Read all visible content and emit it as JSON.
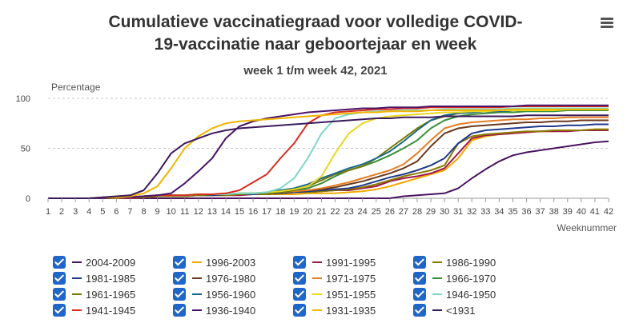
{
  "title": "Cumulatieve vaccinatiegraad voor volledige COVID-19-vaccinatie naar geboortejaar en week",
  "title_lines": [
    "Cumulatieve vaccinatiegraad voor volledige COVID-",
    "19-vaccinatie naar geboortejaar en week"
  ],
  "subtitle": "week 1 t/m week 42, 2021",
  "menu_icon": "hamburger-menu-icon",
  "chart_data": {
    "type": "line",
    "ylabel": "Percentage",
    "xlabel": "Weeknummer",
    "ylim": [
      0,
      100
    ],
    "yticks": [
      0,
      50,
      100
    ],
    "x": [
      1,
      2,
      3,
      4,
      5,
      6,
      7,
      8,
      9,
      10,
      11,
      12,
      13,
      14,
      15,
      16,
      17,
      18,
      19,
      20,
      21,
      22,
      23,
      24,
      25,
      26,
      27,
      28,
      29,
      30,
      31,
      32,
      33,
      34,
      35,
      36,
      37,
      38,
      39,
      40,
      41,
      42
    ],
    "grid": true,
    "legend_position": "bottom",
    "series": [
      {
        "name": "2004-2009",
        "color": "#4a1460",
        "values": [
          0,
          0,
          0,
          0,
          0,
          0,
          0,
          0,
          0,
          0,
          0,
          0,
          0,
          0,
          0,
          0,
          0,
          0,
          0,
          0,
          0,
          0,
          0,
          0,
          0,
          0,
          2,
          3,
          4,
          5,
          10,
          20,
          29,
          37,
          43,
          46,
          48,
          50,
          52,
          54,
          56,
          57
        ]
      },
      {
        "name": "1996-2003",
        "color": "#f2a900",
        "values": [
          0,
          0,
          0,
          0,
          0,
          0,
          0,
          1,
          2,
          3,
          3,
          3,
          3,
          4,
          4,
          4,
          4,
          4,
          4,
          5,
          5,
          5,
          6,
          7,
          9,
          12,
          16,
          20,
          24,
          28,
          40,
          58,
          62,
          64,
          65,
          66,
          67,
          67,
          68,
          68,
          69,
          69
        ]
      },
      {
        "name": "1991-1995",
        "color": "#a0174e",
        "values": [
          0,
          0,
          0,
          0,
          0,
          0,
          0,
          1,
          2,
          2,
          2,
          3,
          3,
          3,
          3,
          4,
          4,
          5,
          6,
          6,
          7,
          8,
          8,
          10,
          12,
          17,
          20,
          22,
          25,
          30,
          45,
          60,
          63,
          64,
          65,
          66,
          67,
          67,
          67,
          68,
          68,
          68
        ]
      },
      {
        "name": "1986-1990",
        "color": "#8b7a00",
        "values": [
          0,
          0,
          0,
          0,
          0,
          0,
          1,
          1,
          2,
          2,
          2,
          3,
          3,
          3,
          4,
          4,
          4,
          5,
          6,
          6,
          7,
          8,
          9,
          11,
          14,
          18,
          22,
          25,
          28,
          33,
          55,
          62,
          64,
          65,
          66,
          67,
          67,
          68,
          68,
          68,
          69,
          69
        ]
      },
      {
        "name": "1981-1985",
        "color": "#1f3a8a",
        "values": [
          0,
          0,
          0,
          0,
          1,
          1,
          1,
          2,
          3,
          3,
          3,
          3,
          3,
          4,
          4,
          4,
          5,
          5,
          6,
          7,
          8,
          9,
          10,
          13,
          17,
          21,
          24,
          28,
          33,
          40,
          55,
          65,
          68,
          69,
          70,
          71,
          72,
          72,
          73,
          73,
          74,
          74
        ]
      },
      {
        "name": "1976-1980",
        "color": "#6b3a1e",
        "values": [
          0,
          0,
          0,
          0,
          0,
          1,
          1,
          2,
          3,
          3,
          3,
          3,
          4,
          4,
          4,
          5,
          5,
          6,
          7,
          8,
          9,
          11,
          14,
          17,
          21,
          25,
          30,
          37,
          52,
          65,
          70,
          72,
          73,
          74,
          75,
          76,
          76,
          77,
          77,
          78,
          78,
          78
        ]
      },
      {
        "name": "1971-1975",
        "color": "#e67e22",
        "values": [
          0,
          0,
          0,
          0,
          0,
          1,
          1,
          2,
          3,
          3,
          3,
          3,
          4,
          4,
          4,
          5,
          5,
          6,
          7,
          8,
          10,
          13,
          16,
          20,
          24,
          28,
          34,
          45,
          58,
          70,
          74,
          76,
          77,
          78,
          79,
          79,
          80,
          80,
          81,
          81,
          81,
          81
        ]
      },
      {
        "name": "1966-1970",
        "color": "#3a8f3a",
        "values": [
          0,
          0,
          0,
          0,
          0,
          1,
          1,
          2,
          3,
          3,
          3,
          3,
          4,
          4,
          4,
          5,
          5,
          6,
          8,
          10,
          15,
          22,
          28,
          32,
          37,
          43,
          50,
          58,
          70,
          78,
          82,
          84,
          85,
          86,
          86,
          87,
          87,
          87,
          88,
          88,
          88,
          88
        ]
      },
      {
        "name": "1961-1965",
        "color": "#7a7a00",
        "values": [
          0,
          0,
          0,
          0,
          0,
          1,
          1,
          2,
          3,
          3,
          3,
          3,
          4,
          4,
          4,
          5,
          5,
          6,
          8,
          12,
          18,
          24,
          28,
          32,
          40,
          50,
          60,
          70,
          78,
          82,
          85,
          86,
          87,
          87,
          88,
          88,
          88,
          89,
          89,
          89,
          89,
          89
        ]
      },
      {
        "name": "1956-1960",
        "color": "#1a6a8a",
        "values": [
          0,
          0,
          0,
          0,
          0,
          1,
          1,
          2,
          3,
          3,
          3,
          4,
          4,
          4,
          5,
          5,
          6,
          8,
          10,
          14,
          20,
          25,
          30,
          34,
          40,
          47,
          57,
          68,
          78,
          83,
          85,
          86,
          87,
          87,
          88,
          88,
          88,
          88,
          89,
          89,
          89,
          89
        ]
      },
      {
        "name": "1951-1955",
        "color": "#e8d820",
        "values": [
          0,
          0,
          0,
          0,
          0,
          1,
          1,
          2,
          3,
          3,
          3,
          4,
          4,
          4,
          5,
          5,
          6,
          7,
          9,
          12,
          22,
          45,
          65,
          75,
          80,
          82,
          83,
          84,
          85,
          86,
          86,
          87,
          87,
          88,
          88,
          88,
          88,
          88,
          89,
          89,
          89,
          89
        ]
      },
      {
        "name": "1946-1950",
        "color": "#7ed6c8",
        "values": [
          0,
          0,
          0,
          0,
          0,
          1,
          1,
          2,
          3,
          3,
          3,
          4,
          4,
          4,
          5,
          5,
          6,
          10,
          20,
          40,
          65,
          80,
          84,
          86,
          87,
          87,
          88,
          88,
          88,
          89,
          89,
          89,
          89,
          89,
          90,
          90,
          90,
          90,
          90,
          90,
          90,
          90
        ]
      },
      {
        "name": "1941-1945",
        "color": "#d62e1f",
        "values": [
          0,
          0,
          0,
          0,
          0,
          1,
          1,
          2,
          3,
          3,
          3,
          4,
          4,
          5,
          8,
          16,
          24,
          40,
          55,
          75,
          83,
          86,
          87,
          88,
          89,
          89,
          90,
          90,
          91,
          91,
          91,
          91,
          91,
          91,
          92,
          92,
          92,
          92,
          92,
          92,
          92,
          92
        ]
      },
      {
        "name": "1936-1940",
        "color": "#4a1468",
        "values": [
          0,
          0,
          0,
          0,
          0,
          1,
          1,
          2,
          3,
          5,
          15,
          27,
          40,
          60,
          72,
          77,
          80,
          82,
          84,
          86,
          87,
          88,
          89,
          90,
          90,
          91,
          91,
          91,
          92,
          92,
          92,
          92,
          92,
          92,
          92,
          93,
          93,
          93,
          93,
          93,
          93,
          93
        ]
      },
      {
        "name": "1931-1935",
        "color": "#f0b400",
        "values": [
          0,
          0,
          0,
          0,
          1,
          1,
          2,
          5,
          12,
          30,
          50,
          62,
          70,
          75,
          77,
          78,
          79,
          80,
          81,
          82,
          83,
          84,
          85,
          86,
          86,
          87,
          87,
          87,
          88,
          88,
          88,
          88,
          88,
          88,
          89,
          89,
          89,
          89,
          89,
          89,
          89,
          89
        ]
      },
      {
        "name": "<1931",
        "color": "#3b1a5c",
        "values": [
          0,
          0,
          0,
          0,
          1,
          2,
          3,
          8,
          25,
          45,
          55,
          60,
          65,
          68,
          70,
          71,
          72,
          73,
          74,
          75,
          76,
          77,
          78,
          79,
          80,
          80,
          81,
          81,
          81,
          82,
          82,
          82,
          82,
          82,
          82,
          83,
          83,
          83,
          83,
          83,
          83,
          83
        ]
      }
    ]
  }
}
